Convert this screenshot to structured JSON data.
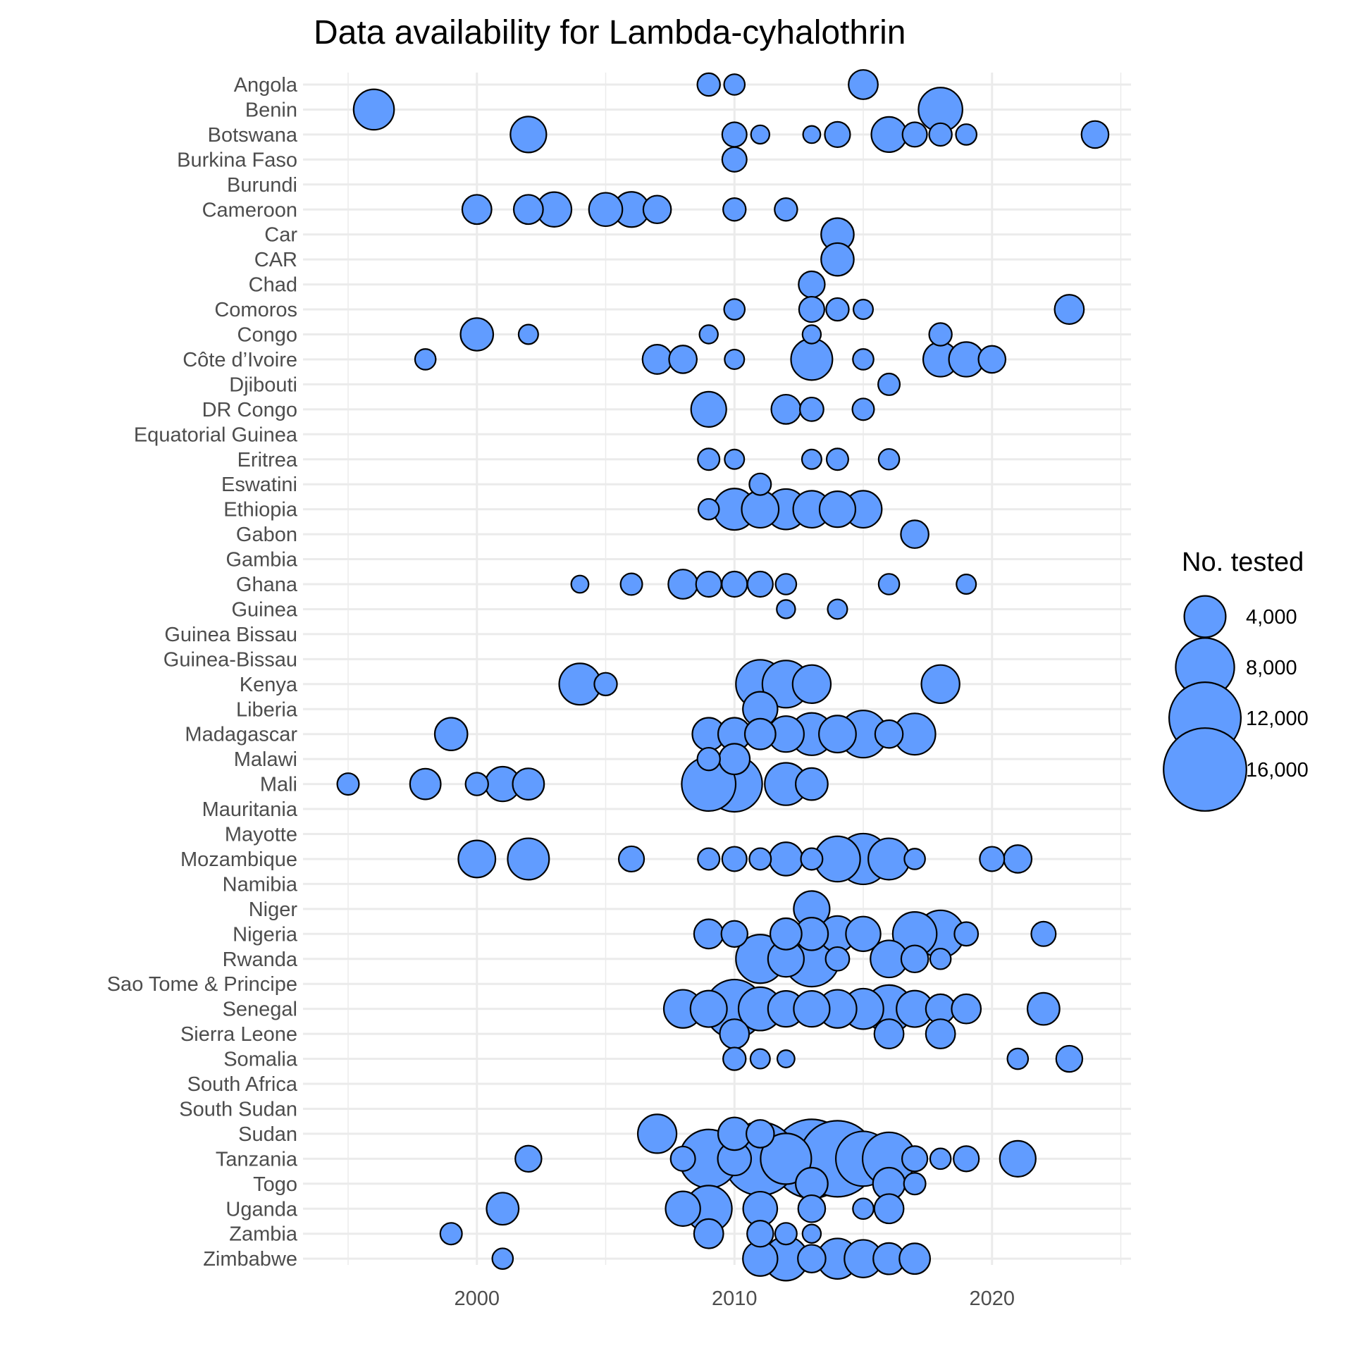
{
  "chart_data": {
    "type": "scatter",
    "title": "Data availability for Lambda-cyhalothrin",
    "xlabel": "",
    "ylabel": "",
    "xlim": [
      1994.3,
      2025.7
    ],
    "x_ticks": [
      2000,
      2010,
      2020
    ],
    "x_minor": [
      1995,
      2005,
      2015,
      2025
    ],
    "marker_color": "#619CFF",
    "marker_edge": "#000000",
    "grid": true,
    "legend": {
      "title": "No. tested",
      "position": "right",
      "entries": [
        {
          "label": "4,000",
          "value": 4000
        },
        {
          "label": "8,000",
          "value": 8000
        },
        {
          "label": "12,000",
          "value": 12000
        },
        {
          "label": "16,000",
          "value": 16000
        }
      ]
    },
    "categories": [
      "Angola",
      "Benin",
      "Botswana",
      "Burkina Faso",
      "Burundi",
      "Cameroon",
      "Car",
      "CAR",
      "Chad",
      "Comoros",
      "Congo",
      "Côte d’Ivoire",
      "Djibouti",
      "DR Congo",
      "Equatorial Guinea",
      "Eritrea",
      "Eswatini",
      "Ethiopia",
      "Gabon",
      "Gambia",
      "Ghana",
      "Guinea",
      "Guinea Bissau",
      "Guinea-Bissau",
      "Kenya",
      "Liberia",
      "Madagascar",
      "Malawi",
      "Mali",
      "Mauritania",
      "Mayotte",
      "Mozambique",
      "Namibia",
      "Niger",
      "Nigeria",
      "Rwanda",
      "Sao Tome & Principe",
      "Senegal",
      "Sierra Leone",
      "Somalia",
      "South Africa",
      "South Sudan",
      "Sudan",
      "Tanzania",
      "Togo",
      "Uganda",
      "Zambia",
      "Zimbabwe"
    ],
    "points": [
      {
        "country": "Angola",
        "x": 2009,
        "n": 1200
      },
      {
        "country": "Angola",
        "x": 2010,
        "n": 1000
      },
      {
        "country": "Angola",
        "x": 2015,
        "n": 2000
      },
      {
        "country": "Benin",
        "x": 1996,
        "n": 3800
      },
      {
        "country": "Benin",
        "x": 2018,
        "n": 4500
      },
      {
        "country": "Botswana",
        "x": 2002,
        "n": 3000
      },
      {
        "country": "Botswana",
        "x": 2010,
        "n": 1400
      },
      {
        "country": "Botswana",
        "x": 2011,
        "n": 800
      },
      {
        "country": "Botswana",
        "x": 2013,
        "n": 700
      },
      {
        "country": "Botswana",
        "x": 2014,
        "n": 1500
      },
      {
        "country": "Botswana",
        "x": 2016,
        "n": 2900
      },
      {
        "country": "Botswana",
        "x": 2017,
        "n": 1400
      },
      {
        "country": "Botswana",
        "x": 2018,
        "n": 1200
      },
      {
        "country": "Botswana",
        "x": 2019,
        "n": 1000
      },
      {
        "country": "Botswana",
        "x": 2024,
        "n": 1700
      },
      {
        "country": "Burkina Faso",
        "x": 2010,
        "n": 1400
      },
      {
        "country": "Cameroon",
        "x": 2000,
        "n": 2000
      },
      {
        "country": "Cameroon",
        "x": 2002,
        "n": 2000
      },
      {
        "country": "Cameroon",
        "x": 2003,
        "n": 2800
      },
      {
        "country": "Cameroon",
        "x": 2005,
        "n": 2600
      },
      {
        "country": "Cameroon",
        "x": 2006,
        "n": 2900
      },
      {
        "country": "Cameroon",
        "x": 2007,
        "n": 1800
      },
      {
        "country": "Cameroon",
        "x": 2010,
        "n": 1200
      },
      {
        "country": "Cameroon",
        "x": 2012,
        "n": 1200
      },
      {
        "country": "Car",
        "x": 2014,
        "n": 2500
      },
      {
        "country": "CAR",
        "x": 2014,
        "n": 2500
      },
      {
        "country": "Chad",
        "x": 2013,
        "n": 1600
      },
      {
        "country": "Comoros",
        "x": 2010,
        "n": 1000
      },
      {
        "country": "Comoros",
        "x": 2013,
        "n": 1500
      },
      {
        "country": "Comoros",
        "x": 2014,
        "n": 1200
      },
      {
        "country": "Comoros",
        "x": 2015,
        "n": 900
      },
      {
        "country": "Comoros",
        "x": 2023,
        "n": 2000
      },
      {
        "country": "Congo",
        "x": 2000,
        "n": 2500
      },
      {
        "country": "Congo",
        "x": 2002,
        "n": 900
      },
      {
        "country": "Congo",
        "x": 2009,
        "n": 800
      },
      {
        "country": "Congo",
        "x": 2013,
        "n": 800
      },
      {
        "country": "Congo",
        "x": 2018,
        "n": 1200
      },
      {
        "country": "Côte d’Ivoire",
        "x": 1998,
        "n": 1000
      },
      {
        "country": "Côte d’Ivoire",
        "x": 2007,
        "n": 2000
      },
      {
        "country": "Côte d’Ivoire",
        "x": 2008,
        "n": 1800
      },
      {
        "country": "Côte d’Ivoire",
        "x": 2010,
        "n": 900
      },
      {
        "country": "Côte d’Ivoire",
        "x": 2013,
        "n": 4000
      },
      {
        "country": "Côte d’Ivoire",
        "x": 2015,
        "n": 1000
      },
      {
        "country": "Côte d’Ivoire",
        "x": 2018,
        "n": 2800
      },
      {
        "country": "Côte d’Ivoire",
        "x": 2019,
        "n": 2800
      },
      {
        "country": "Côte d’Ivoire",
        "x": 2020,
        "n": 1700
      },
      {
        "country": "Djibouti",
        "x": 2016,
        "n": 1100
      },
      {
        "country": "DR Congo",
        "x": 2009,
        "n": 2900
      },
      {
        "country": "DR Congo",
        "x": 2012,
        "n": 2000
      },
      {
        "country": "DR Congo",
        "x": 2013,
        "n": 1300
      },
      {
        "country": "DR Congo",
        "x": 2015,
        "n": 1100
      },
      {
        "country": "Eritrea",
        "x": 2009,
        "n": 1100
      },
      {
        "country": "Eritrea",
        "x": 2010,
        "n": 900
      },
      {
        "country": "Eritrea",
        "x": 2013,
        "n": 900
      },
      {
        "country": "Eritrea",
        "x": 2014,
        "n": 1100
      },
      {
        "country": "Eritrea",
        "x": 2016,
        "n": 1000
      },
      {
        "country": "Eswatini",
        "x": 2011,
        "n": 1100
      },
      {
        "country": "Ethiopia",
        "x": 2009,
        "n": 1000
      },
      {
        "country": "Ethiopia",
        "x": 2010,
        "n": 4000
      },
      {
        "country": "Ethiopia",
        "x": 2011,
        "n": 3200
      },
      {
        "country": "Ethiopia",
        "x": 2012,
        "n": 3800
      },
      {
        "country": "Ethiopia",
        "x": 2013,
        "n": 3200
      },
      {
        "country": "Ethiopia",
        "x": 2014,
        "n": 3000
      },
      {
        "country": "Ethiopia",
        "x": 2015,
        "n": 3200
      },
      {
        "country": "Gabon",
        "x": 2017,
        "n": 1800
      },
      {
        "country": "Ghana",
        "x": 2004,
        "n": 700
      },
      {
        "country": "Ghana",
        "x": 2006,
        "n": 1100
      },
      {
        "country": "Ghana",
        "x": 2008,
        "n": 2000
      },
      {
        "country": "Ghana",
        "x": 2009,
        "n": 1500
      },
      {
        "country": "Ghana",
        "x": 2010,
        "n": 1500
      },
      {
        "country": "Ghana",
        "x": 2011,
        "n": 1500
      },
      {
        "country": "Ghana",
        "x": 2012,
        "n": 1000
      },
      {
        "country": "Ghana",
        "x": 2016,
        "n": 1000
      },
      {
        "country": "Ghana",
        "x": 2019,
        "n": 900
      },
      {
        "country": "Guinea",
        "x": 2012,
        "n": 800
      },
      {
        "country": "Guinea",
        "x": 2014,
        "n": 900
      },
      {
        "country": "Kenya",
        "x": 2004,
        "n": 4000
      },
      {
        "country": "Kenya",
        "x": 2005,
        "n": 1200
      },
      {
        "country": "Kenya",
        "x": 2011,
        "n": 5500
      },
      {
        "country": "Kenya",
        "x": 2012,
        "n": 5200
      },
      {
        "country": "Kenya",
        "x": 2013,
        "n": 3400
      },
      {
        "country": "Kenya",
        "x": 2018,
        "n": 3400
      },
      {
        "country": "Liberia",
        "x": 2011,
        "n": 2800
      },
      {
        "country": "Madagascar",
        "x": 1999,
        "n": 2500
      },
      {
        "country": "Madagascar",
        "x": 2009,
        "n": 2500
      },
      {
        "country": "Madagascar",
        "x": 2010,
        "n": 2500
      },
      {
        "country": "Madagascar",
        "x": 2011,
        "n": 2200
      },
      {
        "country": "Madagascar",
        "x": 2012,
        "n": 3000
      },
      {
        "country": "Madagascar",
        "x": 2013,
        "n": 4200
      },
      {
        "country": "Madagascar",
        "x": 2014,
        "n": 3200
      },
      {
        "country": "Madagascar",
        "x": 2015,
        "n": 5200
      },
      {
        "country": "Madagascar",
        "x": 2016,
        "n": 1800
      },
      {
        "country": "Madagascar",
        "x": 2017,
        "n": 4000
      },
      {
        "country": "Malawi",
        "x": 2009,
        "n": 1200
      },
      {
        "country": "Malawi",
        "x": 2010,
        "n": 2200
      },
      {
        "country": "Mali",
        "x": 1995,
        "n": 1100
      },
      {
        "country": "Mali",
        "x": 1998,
        "n": 2200
      },
      {
        "country": "Mali",
        "x": 2000,
        "n": 1200
      },
      {
        "country": "Mali",
        "x": 2001,
        "n": 2800
      },
      {
        "country": "Mali",
        "x": 2002,
        "n": 2300
      },
      {
        "country": "Mali",
        "x": 2009,
        "n": 6800
      },
      {
        "country": "Mali",
        "x": 2010,
        "n": 7200
      },
      {
        "country": "Mali",
        "x": 2012,
        "n": 4200
      },
      {
        "country": "Mali",
        "x": 2013,
        "n": 2400
      },
      {
        "country": "Mozambique",
        "x": 2000,
        "n": 3200
      },
      {
        "country": "Mozambique",
        "x": 2002,
        "n": 4000
      },
      {
        "country": "Mozambique",
        "x": 2006,
        "n": 1500
      },
      {
        "country": "Mozambique",
        "x": 2009,
        "n": 1100
      },
      {
        "country": "Mozambique",
        "x": 2010,
        "n": 1400
      },
      {
        "country": "Mozambique",
        "x": 2011,
        "n": 1100
      },
      {
        "country": "Mozambique",
        "x": 2012,
        "n": 2600
      },
      {
        "country": "Mozambique",
        "x": 2013,
        "n": 1100
      },
      {
        "country": "Mozambique",
        "x": 2014,
        "n": 4800
      },
      {
        "country": "Mozambique",
        "x": 2015,
        "n": 6000
      },
      {
        "country": "Mozambique",
        "x": 2016,
        "n": 4000
      },
      {
        "country": "Mozambique",
        "x": 2017,
        "n": 1000
      },
      {
        "country": "Mozambique",
        "x": 2020,
        "n": 1400
      },
      {
        "country": "Mozambique",
        "x": 2021,
        "n": 1800
      },
      {
        "country": "Niger",
        "x": 2013,
        "n": 3000
      },
      {
        "country": "Nigeria",
        "x": 2009,
        "n": 2000
      },
      {
        "country": "Nigeria",
        "x": 2010,
        "n": 1600
      },
      {
        "country": "Nigeria",
        "x": 2012,
        "n": 2300
      },
      {
        "country": "Nigeria",
        "x": 2013,
        "n": 2500
      },
      {
        "country": "Nigeria",
        "x": 2014,
        "n": 3000
      },
      {
        "country": "Nigeria",
        "x": 2015,
        "n": 2800
      },
      {
        "country": "Nigeria",
        "x": 2017,
        "n": 4500
      },
      {
        "country": "Nigeria",
        "x": 2018,
        "n": 5200
      },
      {
        "country": "Nigeria",
        "x": 2019,
        "n": 1300
      },
      {
        "country": "Nigeria",
        "x": 2022,
        "n": 1400
      },
      {
        "country": "Rwanda",
        "x": 2011,
        "n": 5500
      },
      {
        "country": "Rwanda",
        "x": 2012,
        "n": 3000
      },
      {
        "country": "Rwanda",
        "x": 2013,
        "n": 7200
      },
      {
        "country": "Rwanda",
        "x": 2014,
        "n": 1300
      },
      {
        "country": "Rwanda",
        "x": 2016,
        "n": 3200
      },
      {
        "country": "Rwanda",
        "x": 2017,
        "n": 1700
      },
      {
        "country": "Rwanda",
        "x": 2018,
        "n": 1000
      },
      {
        "country": "Senegal",
        "x": 2008,
        "n": 3400
      },
      {
        "country": "Senegal",
        "x": 2009,
        "n": 3100
      },
      {
        "country": "Senegal",
        "x": 2010,
        "n": 8000
      },
      {
        "country": "Senegal",
        "x": 2011,
        "n": 4400
      },
      {
        "country": "Senegal",
        "x": 2012,
        "n": 3000
      },
      {
        "country": "Senegal",
        "x": 2013,
        "n": 3000
      },
      {
        "country": "Senegal",
        "x": 2014,
        "n": 3400
      },
      {
        "country": "Senegal",
        "x": 2015,
        "n": 3800
      },
      {
        "country": "Senegal",
        "x": 2016,
        "n": 5300
      },
      {
        "country": "Senegal",
        "x": 2017,
        "n": 3100
      },
      {
        "country": "Senegal",
        "x": 2018,
        "n": 2000
      },
      {
        "country": "Senegal",
        "x": 2019,
        "n": 2000
      },
      {
        "country": "Senegal",
        "x": 2022,
        "n": 2400
      },
      {
        "country": "Sierra Leone",
        "x": 2010,
        "n": 2000
      },
      {
        "country": "Sierra Leone",
        "x": 2016,
        "n": 2000
      },
      {
        "country": "Sierra Leone",
        "x": 2018,
        "n": 2000
      },
      {
        "country": "Somalia",
        "x": 2010,
        "n": 1200
      },
      {
        "country": "Somalia",
        "x": 2011,
        "n": 900
      },
      {
        "country": "Somalia",
        "x": 2012,
        "n": 700
      },
      {
        "country": "Somalia",
        "x": 2021,
        "n": 1000
      },
      {
        "country": "Somalia",
        "x": 2023,
        "n": 1600
      },
      {
        "country": "Sudan",
        "x": 2007,
        "n": 3500
      },
      {
        "country": "Sudan",
        "x": 2010,
        "n": 2500
      },
      {
        "country": "Sudan",
        "x": 2011,
        "n": 1800
      },
      {
        "country": "Tanzania",
        "x": 2002,
        "n": 1600
      },
      {
        "country": "Tanzania",
        "x": 2008,
        "n": 1400
      },
      {
        "country": "Tanzania",
        "x": 2009,
        "n": 8000
      },
      {
        "country": "Tanzania",
        "x": 2010,
        "n": 2600
      },
      {
        "country": "Tanzania",
        "x": 2011,
        "n": 12500
      },
      {
        "country": "Tanzania",
        "x": 2012,
        "n": 6000
      },
      {
        "country": "Tanzania",
        "x": 2013,
        "n": 14500
      },
      {
        "country": "Tanzania",
        "x": 2014,
        "n": 13500
      },
      {
        "country": "Tanzania",
        "x": 2015,
        "n": 7000
      },
      {
        "country": "Tanzania",
        "x": 2016,
        "n": 6500
      },
      {
        "country": "Tanzania",
        "x": 2017,
        "n": 1500
      },
      {
        "country": "Tanzania",
        "x": 2018,
        "n": 1000
      },
      {
        "country": "Tanzania",
        "x": 2019,
        "n": 1500
      },
      {
        "country": "Tanzania",
        "x": 2021,
        "n": 3000
      },
      {
        "country": "Togo",
        "x": 2013,
        "n": 2400
      },
      {
        "country": "Togo",
        "x": 2016,
        "n": 2400
      },
      {
        "country": "Togo",
        "x": 2017,
        "n": 1100
      },
      {
        "country": "Uganda",
        "x": 2001,
        "n": 2400
      },
      {
        "country": "Uganda",
        "x": 2008,
        "n": 2800
      },
      {
        "country": "Uganda",
        "x": 2009,
        "n": 5000
      },
      {
        "country": "Uganda",
        "x": 2011,
        "n": 2700
      },
      {
        "country": "Uganda",
        "x": 2013,
        "n": 1700
      },
      {
        "country": "Uganda",
        "x": 2015,
        "n": 1000
      },
      {
        "country": "Uganda",
        "x": 2016,
        "n": 2000
      },
      {
        "country": "Zambia",
        "x": 1999,
        "n": 1100
      },
      {
        "country": "Zambia",
        "x": 2009,
        "n": 2000
      },
      {
        "country": "Zambia",
        "x": 2011,
        "n": 1600
      },
      {
        "country": "Zambia",
        "x": 2012,
        "n": 1100
      },
      {
        "country": "Zambia",
        "x": 2013,
        "n": 800
      },
      {
        "country": "Zimbabwe",
        "x": 2001,
        "n": 1000
      },
      {
        "country": "Zimbabwe",
        "x": 2011,
        "n": 2800
      },
      {
        "country": "Zimbabwe",
        "x": 2012,
        "n": 4500
      },
      {
        "country": "Zimbabwe",
        "x": 2013,
        "n": 1800
      },
      {
        "country": "Zimbabwe",
        "x": 2014,
        "n": 3800
      },
      {
        "country": "Zimbabwe",
        "x": 2015,
        "n": 3300
      },
      {
        "country": "Zimbabwe",
        "x": 2016,
        "n": 2300
      },
      {
        "country": "Zimbabwe",
        "x": 2017,
        "n": 2200
      }
    ]
  }
}
